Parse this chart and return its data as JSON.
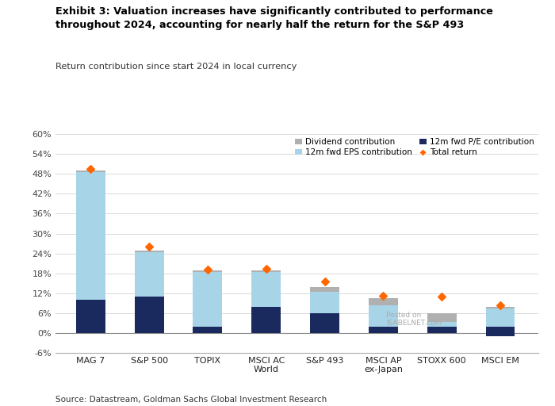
{
  "title_bold": "Exhibit 3: Valuation increases have significantly contributed to performance\nthroughout 2024, accounting for nearly half the return for the S&P 493",
  "subtitle": "Return contribution since start 2024 in local currency",
  "source": "Source: Datastream, Goldman Sachs Global Investment Research",
  "categories": [
    "MAG 7",
    "S&P 500",
    "TOPIX",
    "MSCI AC\nWorld",
    "S&P 493",
    "MSCI AP\nex-Japan",
    "STOXX 600",
    "MSCI EM"
  ],
  "dividend": [
    0.5,
    0.5,
    0.5,
    0.5,
    1.5,
    2.0,
    2.5,
    0.5
  ],
  "eps": [
    38.5,
    13.5,
    16.5,
    10.5,
    6.5,
    6.5,
    1.5,
    5.5
  ],
  "pe": [
    10.0,
    11.0,
    2.0,
    8.0,
    6.0,
    2.0,
    2.0,
    2.0
  ],
  "pe_negative": [
    0,
    0,
    0,
    0,
    0,
    0,
    0,
    -1.0
  ],
  "total_return": [
    49.5,
    26.2,
    19.2,
    19.3,
    15.5,
    11.2,
    11.0,
    8.5
  ],
  "color_dividend": "#b0b0b0",
  "color_eps": "#a8d4e8",
  "color_pe": "#1b2a5e",
  "color_total": "#ff6600",
  "ylim_min": -6,
  "ylim_max": 60,
  "yticks": [
    -6,
    0,
    6,
    12,
    18,
    24,
    30,
    36,
    42,
    48,
    54,
    60
  ]
}
